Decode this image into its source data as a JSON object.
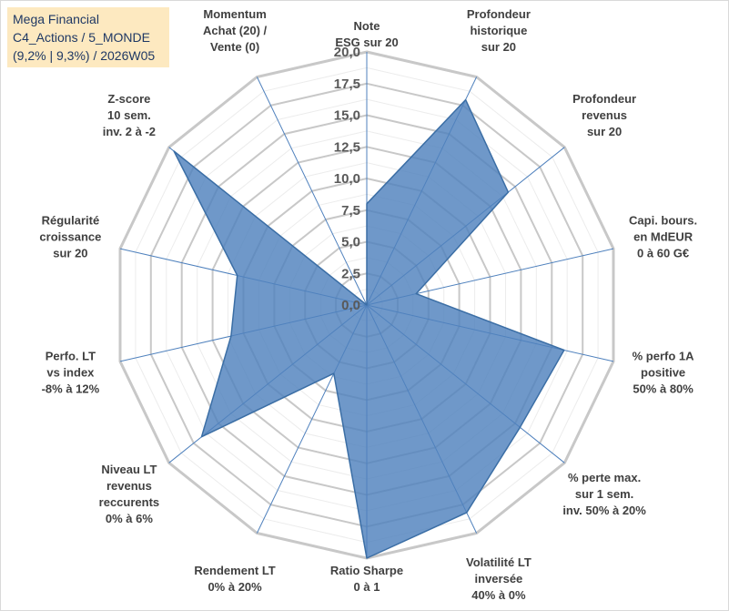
{
  "chart_data": {
    "type": "radar",
    "title_lines": [
      "Mega Financial",
      "C4_Actions / 5_MONDE",
      "(9,2% | 9,3%) / 2026W05"
    ],
    "axes": [
      [
        "Note",
        "ESG sur 20"
      ],
      [
        "Profondeur",
        "historique",
        "sur 20"
      ],
      [
        "Profondeur",
        "revenus",
        "sur 20"
      ],
      [
        "Capi. bours.",
        "en MdEUR",
        "0 à 60 G€"
      ],
      [
        "% perfo 1A",
        "positive",
        "50% à 80%"
      ],
      [
        "% perte max.",
        "sur 1 sem.",
        "inv. 50% à 20%"
      ],
      [
        "Volatilité LT",
        "inversée",
        "40% à 0%"
      ],
      [
        "Ratio Sharpe",
        "0 à 1"
      ],
      [
        "Rendement LT",
        "0% à 20%"
      ],
      [
        "Niveau LT",
        "revenus",
        "reccurents",
        "0% à 6%"
      ],
      [
        "Perfo. LT",
        "vs index",
        "-8% à 12%"
      ],
      [
        "Régularité",
        "croissance",
        "sur 20"
      ],
      [
        "Z-score",
        "10 sem.",
        "inv. 2 à -2"
      ],
      [
        "Momentum",
        "Achat (20) /",
        "Vente (0)"
      ]
    ],
    "values": [
      8.0,
      18.0,
      14.3,
      4.0,
      16.0,
      15.5,
      18.2,
      20.0,
      6.0,
      16.7,
      11.0,
      10.5,
      19.5,
      0.0
    ],
    "rmin": 0,
    "rmax": 20,
    "ticks": [
      "0,0",
      "2,5",
      "5,0",
      "7,5",
      "10,0",
      "12,5",
      "15,0",
      "17,5",
      "20,0"
    ],
    "series_color": "#4f81bd"
  }
}
